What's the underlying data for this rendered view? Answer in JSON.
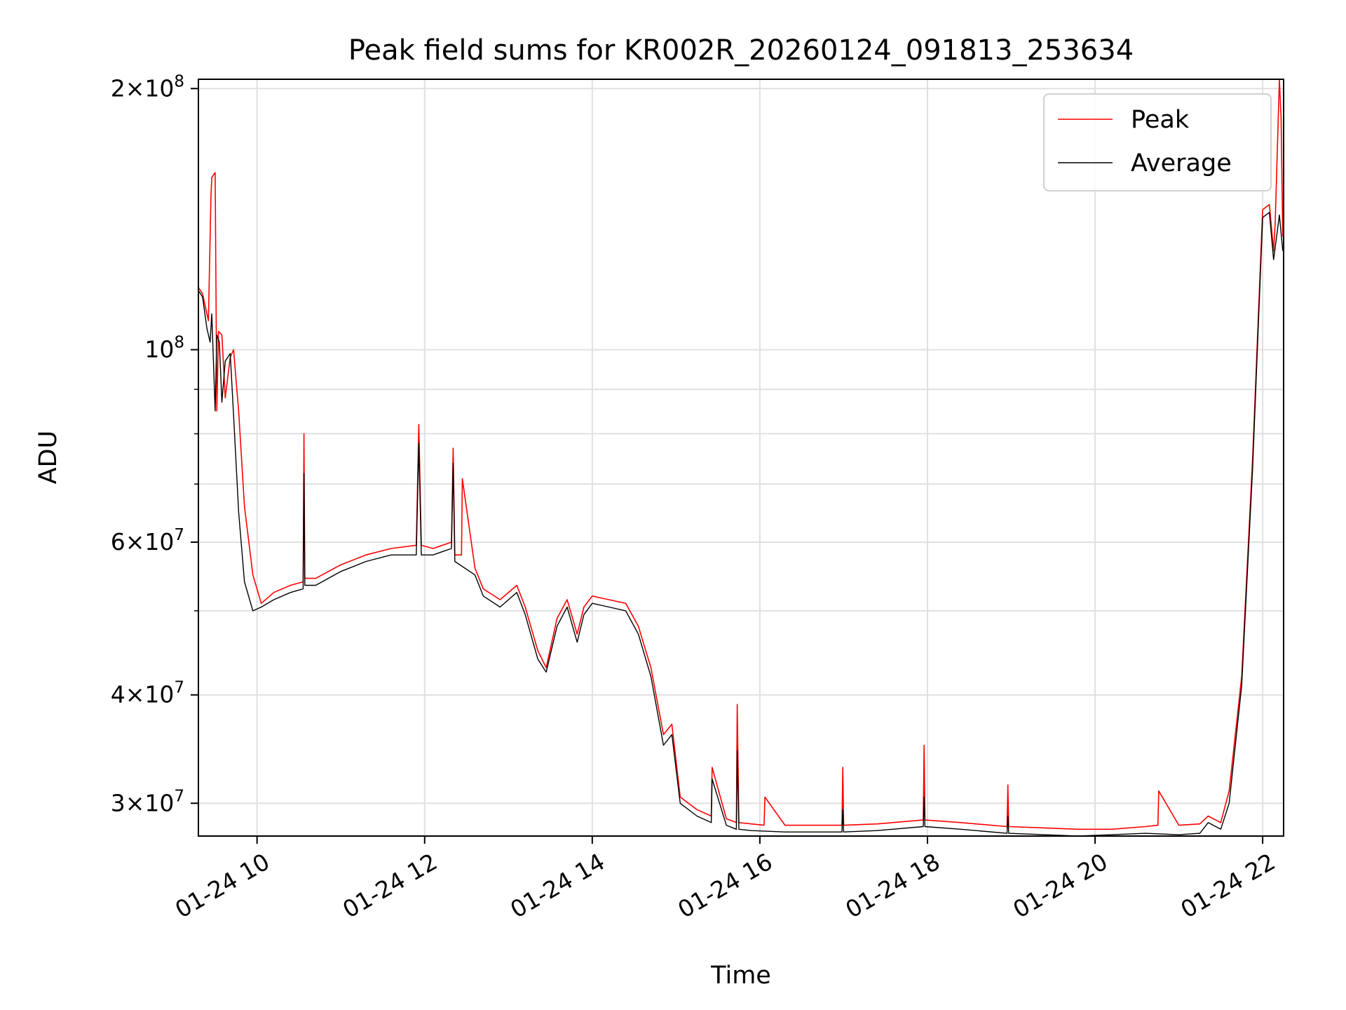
{
  "chart_data": {
    "type": "line",
    "title": "Peak field sums for KR002R_20260124_091813_253634",
    "xlabel": "Time",
    "ylabel": "ADU",
    "x_unit": "hour of 2026-01-24",
    "xlim": [
      9.3,
      22.25
    ],
    "ylim": [
      27500000,
      205000000
    ],
    "yscale": "log",
    "grid": true,
    "legend_position": "top-right",
    "x_ticks": [
      {
        "value": 10,
        "label": "01-24 10"
      },
      {
        "value": 12,
        "label": "01-24 12"
      },
      {
        "value": 14,
        "label": "01-24 14"
      },
      {
        "value": 16,
        "label": "01-24 16"
      },
      {
        "value": 18,
        "label": "01-24 18"
      },
      {
        "value": 20,
        "label": "01-24 20"
      },
      {
        "value": 22,
        "label": "01-24 22"
      }
    ],
    "y_major_ticks": [
      {
        "value": 30000000,
        "mantissa": "3",
        "exponent": "7"
      },
      {
        "value": 40000000,
        "mantissa": "4",
        "exponent": "7"
      },
      {
        "value": 60000000,
        "mantissa": "6",
        "exponent": "7"
      },
      {
        "value": 100000000,
        "mantissa": "",
        "exponent": "8"
      },
      {
        "value": 200000000,
        "mantissa": "2",
        "exponent": "8"
      }
    ],
    "y_minor_ticks": [
      50000000,
      70000000,
      80000000,
      90000000
    ],
    "series": [
      {
        "name": "Peak",
        "color": "#ff0000",
        "x": [
          9.3,
          9.35,
          9.42,
          9.45,
          9.46,
          9.5,
          9.52,
          9.54,
          9.58,
          9.62,
          9.68,
          9.72,
          9.78,
          9.85,
          9.95,
          10.05,
          10.2,
          10.4,
          10.55,
          10.56,
          10.57,
          10.7,
          11.0,
          11.3,
          11.6,
          11.9,
          11.93,
          11.96,
          12.1,
          12.32,
          12.34,
          12.36,
          12.44,
          12.45,
          12.6,
          12.7,
          12.9,
          13.1,
          13.2,
          13.35,
          13.45,
          13.58,
          13.7,
          13.82,
          13.9,
          14.0,
          14.2,
          14.4,
          14.55,
          14.7,
          14.85,
          14.95,
          15.05,
          15.25,
          15.42,
          15.43,
          15.6,
          15.72,
          15.73,
          15.75,
          15.9,
          16.05,
          16.06,
          16.3,
          16.6,
          16.98,
          16.99,
          17.0,
          17.4,
          17.95,
          17.96,
          17.97,
          18.4,
          18.95,
          18.96,
          18.97,
          19.4,
          19.8,
          20.2,
          20.6,
          20.75,
          20.76,
          21.0,
          21.25,
          21.35,
          21.5,
          21.6,
          21.75,
          21.88,
          22.0,
          22.08,
          22.13,
          22.15,
          22.2,
          22.22,
          22.24
        ],
        "y": [
          118000000,
          116000000,
          108000000,
          150000000,
          158000000,
          160000000,
          85000000,
          105000000,
          104000000,
          88000000,
          98000000,
          100000000,
          85000000,
          66000000,
          55000000,
          51000000,
          52500000,
          53500000,
          54000000,
          80000000,
          54500000,
          54500000,
          56500000,
          58000000,
          59000000,
          59500000,
          82000000,
          59500000,
          59000000,
          60000000,
          77000000,
          58000000,
          58000000,
          71000000,
          56000000,
          53000000,
          51500000,
          53500000,
          50500000,
          45000000,
          43000000,
          49000000,
          51500000,
          47000000,
          50500000,
          52000000,
          51500000,
          51000000,
          48000000,
          43000000,
          36000000,
          37000000,
          30500000,
          29500000,
          29000000,
          33000000,
          28800000,
          28500000,
          39000000,
          28500000,
          28400000,
          28300000,
          30500000,
          28300000,
          28300000,
          28300000,
          33000000,
          28300000,
          28400000,
          28700000,
          35000000,
          28700000,
          28500000,
          28200000,
          31500000,
          28200000,
          28100000,
          28000000,
          28000000,
          28200000,
          28300000,
          31000000,
          28300000,
          28400000,
          29000000,
          28500000,
          31000000,
          42000000,
          75000000,
          145000000,
          147000000,
          130000000,
          140000000,
          205000000,
          185000000,
          135000000
        ]
      },
      {
        "name": "Average",
        "color": "#000000",
        "x": [
          9.3,
          9.35,
          9.4,
          9.44,
          9.46,
          9.5,
          9.52,
          9.55,
          9.58,
          9.62,
          9.68,
          9.72,
          9.78,
          9.85,
          9.95,
          10.05,
          10.2,
          10.4,
          10.55,
          10.56,
          10.57,
          10.7,
          11.0,
          11.3,
          11.6,
          11.9,
          11.93,
          11.96,
          12.1,
          12.32,
          12.34,
          12.36,
          12.6,
          12.7,
          12.9,
          13.1,
          13.2,
          13.35,
          13.45,
          13.58,
          13.7,
          13.82,
          13.9,
          14.0,
          14.2,
          14.4,
          14.55,
          14.7,
          14.85,
          14.95,
          15.05,
          15.25,
          15.42,
          15.43,
          15.6,
          15.72,
          15.73,
          15.75,
          15.9,
          16.3,
          16.6,
          16.98,
          16.99,
          17.0,
          17.4,
          17.95,
          17.96,
          17.97,
          18.4,
          18.95,
          18.96,
          18.97,
          19.4,
          19.8,
          20.2,
          20.6,
          21.0,
          21.25,
          21.35,
          21.5,
          21.6,
          21.75,
          21.88,
          22.0,
          22.08,
          22.13,
          22.2,
          22.24
        ],
        "y": [
          117000000,
          115000000,
          106000000,
          102000000,
          110000000,
          85000000,
          104000000,
          102000000,
          87000000,
          97000000,
          99000000,
          84000000,
          65000000,
          54000000,
          50000000,
          50500000,
          51500000,
          52500000,
          53000000,
          72000000,
          53500000,
          53500000,
          55500000,
          57000000,
          58000000,
          58000000,
          78000000,
          58000000,
          58000000,
          59000000,
          74000000,
          57000000,
          55000000,
          52000000,
          50500000,
          52500000,
          49500000,
          44000000,
          42500000,
          48000000,
          50500000,
          46000000,
          49500000,
          51000000,
          50500000,
          50000000,
          47000000,
          42000000,
          35000000,
          36000000,
          30000000,
          29000000,
          28500000,
          32000000,
          28300000,
          28000000,
          34500000,
          28000000,
          27900000,
          27800000,
          27800000,
          27800000,
          29500000,
          27800000,
          27900000,
          28200000,
          30500000,
          28200000,
          28000000,
          27700000,
          29000000,
          27700000,
          27600000,
          27500000,
          27600000,
          27700000,
          27600000,
          27700000,
          28500000,
          28000000,
          30000000,
          41000000,
          73000000,
          142000000,
          144000000,
          127000000,
          143000000,
          130000000
        ]
      }
    ]
  }
}
